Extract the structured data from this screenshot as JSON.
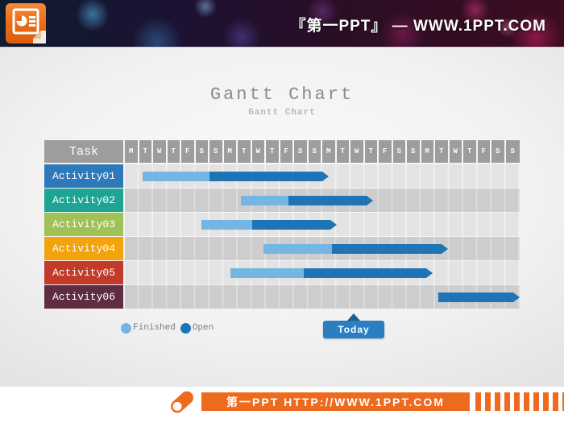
{
  "banner": {
    "site_title": "『第一PPT』 —  WWW.1PPT.COM",
    "logo_icon": "powerpoint-document-icon"
  },
  "slide": {
    "title": "Gantt Chart",
    "subtitle": "Gantt Chart",
    "today_label": "Today"
  },
  "chart_data": {
    "type": "bar",
    "subtype": "gantt",
    "title": "Gantt Chart",
    "header_label": "Task",
    "x_axis": {
      "unit": "weekday",
      "range_days": [
        0,
        28
      ],
      "labels": [
        "M",
        "T",
        "W",
        "T",
        "F",
        "S",
        "S",
        "M",
        "T",
        "W",
        "T",
        "F",
        "S",
        "S",
        "M",
        "T",
        "W",
        "T",
        "F",
        "S",
        "S",
        "M",
        "T",
        "W",
        "T",
        "F",
        "S",
        "S"
      ]
    },
    "tasks": [
      {
        "name": "Activity01",
        "label_color": "#2e79b9",
        "start_day": 1.25,
        "finished_until_day": 6.0,
        "end_day": 14.45
      },
      {
        "name": "Activity02",
        "label_color": "#1ea492",
        "start_day": 8.2,
        "finished_until_day": 11.6,
        "end_day": 17.6
      },
      {
        "name": "Activity03",
        "label_color": "#a0c156",
        "start_day": 5.4,
        "finished_until_day": 9.0,
        "end_day": 15.0
      },
      {
        "name": "Activity04",
        "label_color": "#f3a30c",
        "start_day": 9.8,
        "finished_until_day": 14.7,
        "end_day": 22.9
      },
      {
        "name": "Activity05",
        "label_color": "#c13a2a",
        "start_day": 7.5,
        "finished_until_day": 12.7,
        "end_day": 21.8
      },
      {
        "name": "Activity06",
        "label_color": "#5e2d42",
        "start_day": 22.2,
        "finished_until_day": 22.2,
        "end_day": 28.0
      }
    ],
    "today_marker_day": 16.1,
    "legend": [
      {
        "label": "Finished",
        "color": "#74b5e3"
      },
      {
        "label": "Open",
        "color": "#1e74b4"
      }
    ],
    "colors": {
      "header_cell": "#9d9d9e",
      "bar_finished": "#74b5e3",
      "bar_open": "#1e74b4",
      "today_button": "#2a7fc2"
    }
  },
  "footer": {
    "url_text": "第一PPT HTTP://WWW.1PPT.COM",
    "chalk_icon": "chalk-icon",
    "accent_color": "#ee6a1e"
  }
}
